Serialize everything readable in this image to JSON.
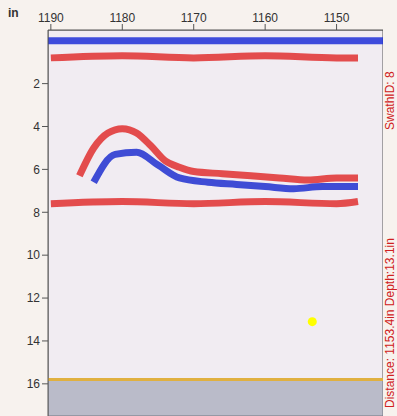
{
  "chart_data": {
    "type": "radargram",
    "x_label": "in",
    "annotations": [
      "SwathID: 8",
      "Distance: 1153.4in Depth:13.1in"
    ],
    "xlim": [
      1190.4,
      1143.5
    ],
    "xticks": [
      1190,
      1180,
      1170,
      1160,
      1150
    ],
    "ylim": [
      -0.5,
      17.5
    ],
    "yticks": [
      2,
      4,
      6,
      8,
      10,
      12,
      14,
      16
    ],
    "series": [
      {
        "color": "#1f2fd8",
        "x": [
          1190.4,
          1143.5
        ],
        "values": [
          0,
          0
        ]
      },
      {
        "color": "#e03030",
        "x": [
          1190,
          1180,
          1170,
          1160,
          1150,
          1147
        ],
        "values": [
          0.8,
          0.7,
          0.8,
          0.7,
          0.8,
          0.8
        ]
      },
      {
        "color": "#e03030",
        "x": [
          1186,
          1184,
          1182,
          1180,
          1178,
          1176,
          1174,
          1172,
          1170,
          1166,
          1162,
          1158,
          1154,
          1150,
          1147
        ],
        "values": [
          6.3,
          5.0,
          4.3,
          4.1,
          4.3,
          4.9,
          5.6,
          5.9,
          6.1,
          6.2,
          6.3,
          6.4,
          6.5,
          6.4,
          6.4
        ]
      },
      {
        "color": "#2030d0",
        "x": [
          1184,
          1181,
          1178,
          1175,
          1172,
          1168,
          1164,
          1160,
          1156,
          1152,
          1147
        ],
        "values": [
          6.6,
          5.3,
          5.2,
          5.8,
          6.4,
          6.6,
          6.7,
          6.8,
          6.9,
          6.8,
          6.8
        ]
      },
      {
        "color": "#e03030",
        "x": [
          1190,
          1180,
          1170,
          1160,
          1150,
          1147
        ],
        "values": [
          7.6,
          7.5,
          7.6,
          7.5,
          7.6,
          7.5
        ]
      }
    ],
    "surface": {
      "color": "#e0b040",
      "value": 15.8
    },
    "cursor": {
      "color": "#ffff00",
      "x": 1153.4,
      "y": 13.1
    }
  }
}
